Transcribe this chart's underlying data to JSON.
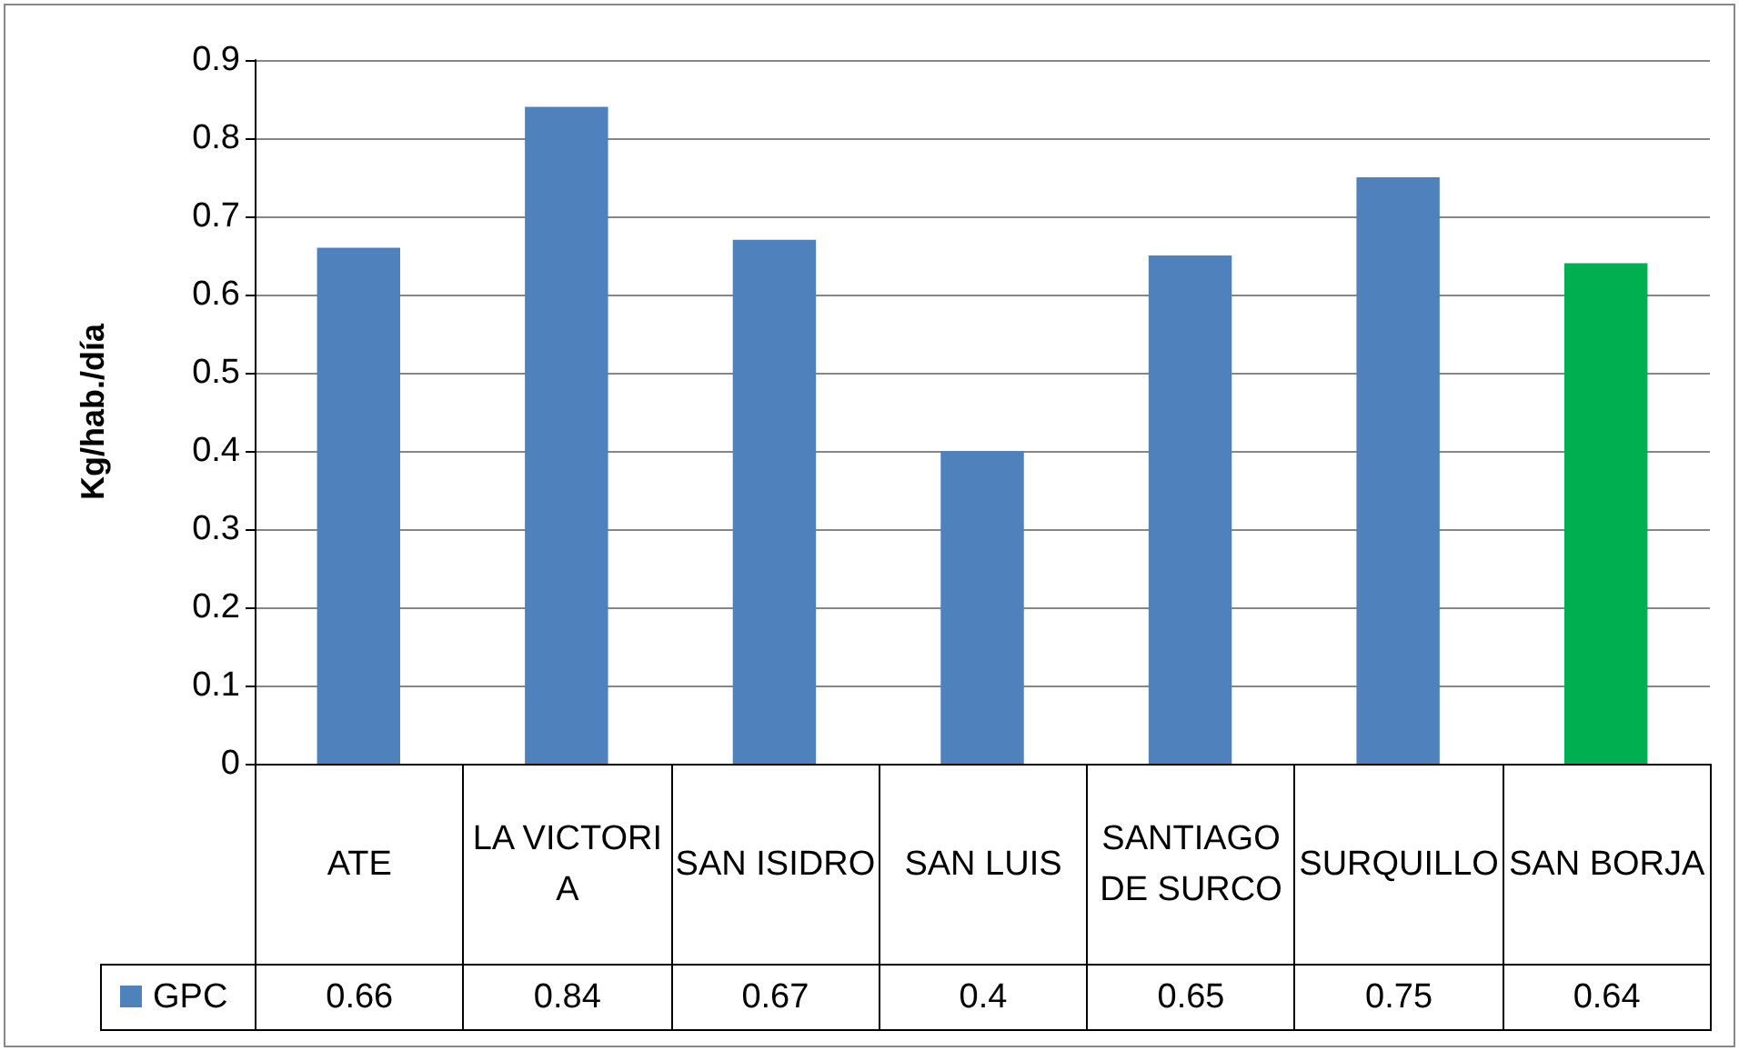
{
  "chart_data": {
    "type": "bar",
    "ylabel": "Kg/hab./día",
    "categories": [
      "ATE",
      "LA VICTORIA",
      "SAN ISIDRO",
      "SAN LUIS",
      "SANTIAGO DE SURCO",
      "SURQUILLO",
      "SAN BORJA"
    ],
    "series": [
      {
        "name": "GPC",
        "color": "#4f81bd",
        "colors": [
          "#4f81bd",
          "#4f81bd",
          "#4f81bd",
          "#4f81bd",
          "#4f81bd",
          "#4f81bd",
          "#00b050"
        ],
        "values": [
          0.66,
          0.84,
          0.67,
          0.4,
          0.65,
          0.75,
          0.64
        ]
      }
    ],
    "ylim": [
      0,
      0.9
    ],
    "yticks": [
      0,
      0.1,
      0.2,
      0.3,
      0.4,
      0.5,
      0.6,
      0.7,
      0.8,
      0.9
    ],
    "grid": "y",
    "legend": "bottom left",
    "data_labels": true
  }
}
